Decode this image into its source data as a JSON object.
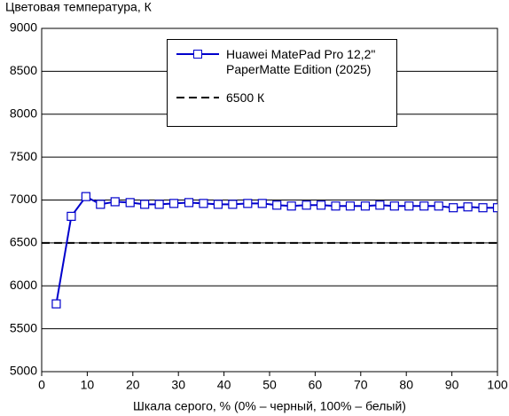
{
  "chart_data": {
    "type": "line",
    "y_label": "Цветовая температура, К",
    "x_label": "Шкала серого, % (0% – черный, 100% – белый)",
    "xlim": [
      0,
      100
    ],
    "xticks": [
      0,
      10,
      20,
      30,
      40,
      50,
      60,
      70,
      80,
      90,
      100
    ],
    "ylim": [
      5000,
      9000
    ],
    "yticks": [
      5000,
      5500,
      6000,
      6500,
      7000,
      7500,
      8000,
      8500,
      9000
    ],
    "grid": true,
    "x": [
      3.2,
      6.5,
      9.7,
      12.9,
      16.1,
      19.4,
      22.6,
      25.8,
      29.0,
      32.3,
      35.5,
      38.7,
      41.9,
      45.2,
      48.4,
      51.6,
      54.8,
      58.1,
      61.3,
      64.5,
      67.7,
      71.0,
      74.2,
      77.4,
      80.6,
      83.9,
      87.1,
      90.3,
      93.5,
      96.8,
      100
    ],
    "series": [
      {
        "name": "Huawei MatePad Pro 12,2\" PaperMatte Edition (2025)",
        "color": "#0000cc",
        "values": [
          5790,
          6810,
          7040,
          6950,
          6980,
          6970,
          6950,
          6950,
          6960,
          6970,
          6960,
          6950,
          6950,
          6960,
          6960,
          6940,
          6930,
          6940,
          6940,
          6930,
          6930,
          6930,
          6940,
          6930,
          6930,
          6930,
          6930,
          6910,
          6920,
          6910,
          6910
        ]
      }
    ],
    "reference_lines": [
      {
        "value": 6500,
        "label": "6500 К",
        "color": "#000000"
      }
    ]
  }
}
